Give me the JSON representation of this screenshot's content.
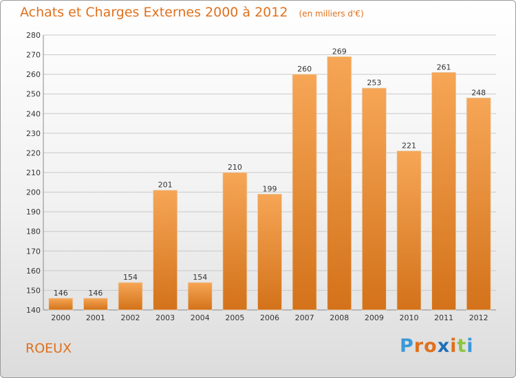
{
  "header": {
    "title": "Achats et Charges Externes 2000 à 2012",
    "unit": "(en milliers d'€)"
  },
  "footer": {
    "place": "ROEUX",
    "brand": "Proxiti",
    "brand_colors": [
      "#3a9ad9",
      "#e0701c",
      "#e0701c",
      "#1f6fb8",
      "#e0701c",
      "#8cc63f",
      "#3a9ad9"
    ]
  },
  "colors": {
    "bar_top": "#f6a656",
    "bar_bottom": "#d3721a",
    "grid": "#c8c8c8",
    "axis_text": "#333333",
    "label_text": "#333333"
  },
  "chart_data": {
    "type": "bar",
    "categories": [
      "2000",
      "2001",
      "2002",
      "2003",
      "2004",
      "2005",
      "2006",
      "2007",
      "2008",
      "2009",
      "2010",
      "2011",
      "2012"
    ],
    "values": [
      146,
      146,
      154,
      201,
      154,
      210,
      199,
      260,
      269,
      253,
      221,
      261,
      248
    ],
    "title": "Achats et Charges Externes 2000 à 2012",
    "xlabel": "",
    "ylabel": "",
    "ylim": [
      140,
      280
    ],
    "yticks": [
      140,
      150,
      160,
      170,
      180,
      190,
      200,
      210,
      220,
      230,
      240,
      250,
      260,
      270,
      280
    ],
    "grid": true,
    "data_labels": true
  }
}
